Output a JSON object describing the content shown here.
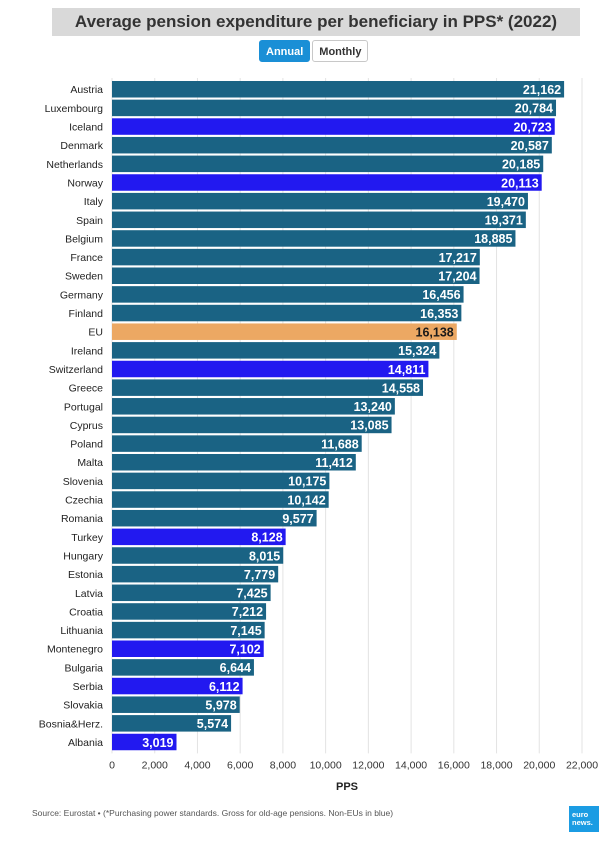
{
  "header": {
    "title": "Average pension expenditure per beneficiary in PPS* (2022)"
  },
  "tabs": [
    {
      "label": "Annual",
      "active": true
    },
    {
      "label": "Monthly",
      "active": false
    }
  ],
  "footer": {
    "source": "Source: Eurostat • (*Purchasing power standards. Gross for old-age pensions. Non-EUs in blue)",
    "logo_line1": "euro",
    "logo_line2": "news."
  },
  "colors": {
    "eu_member": "#1a6384",
    "non_eu": "#2219f0",
    "eu_average": "#eca863",
    "grid": "#e3e3e3"
  },
  "chart_data": {
    "type": "bar",
    "orientation": "horizontal",
    "title": "Average pension expenditure per beneficiary in PPS* (2022)",
    "xlabel": "PPS",
    "ylabel": "",
    "xlim": [
      0,
      22000
    ],
    "xticks": [
      0,
      2000,
      4000,
      6000,
      8000,
      10000,
      12000,
      14000,
      16000,
      18000,
      20000,
      22000
    ],
    "xtick_labels": [
      "0",
      "2,000",
      "4,000",
      "6,000",
      "8,000",
      "10,000",
      "12,000",
      "14,000",
      "16,000",
      "18,000",
      "20,000",
      "22,000"
    ],
    "grid": true,
    "categories": [
      "Austria",
      "Luxembourg",
      "Iceland",
      "Denmark",
      "Netherlands",
      "Norway",
      "Italy",
      "Spain",
      "Belgium",
      "France",
      "Sweden",
      "Germany",
      "Finland",
      "EU",
      "Ireland",
      "Switzerland",
      "Greece",
      "Portugal",
      "Cyprus",
      "Poland",
      "Malta",
      "Slovenia",
      "Czechia",
      "Romania",
      "Turkey",
      "Hungary",
      "Estonia",
      "Latvia",
      "Croatia",
      "Lithuania",
      "Montenegro",
      "Bulgaria",
      "Serbia",
      "Slovakia",
      "Bosnia&Herz.",
      "Albania"
    ],
    "values": [
      21162,
      20784,
      20723,
      20587,
      20185,
      20113,
      19470,
      19371,
      18885,
      17217,
      17204,
      16456,
      16353,
      16138,
      15324,
      14811,
      14558,
      13240,
      13085,
      11688,
      11412,
      10175,
      10142,
      9577,
      8128,
      8015,
      7779,
      7425,
      7212,
      7145,
      7102,
      6644,
      6112,
      5978,
      5574,
      3019
    ],
    "value_labels": [
      "21,162",
      "20,784",
      "20,723",
      "20,587",
      "20,185",
      "20,113",
      "19,470",
      "19,371",
      "18,885",
      "17,217",
      "17,204",
      "16,456",
      "16,353",
      "16,138",
      "15,324",
      "14,811",
      "14,558",
      "13,240",
      "13,085",
      "11,688",
      "11,412",
      "10,175",
      "10,142",
      "9,577",
      "8,128",
      "8,015",
      "7,779",
      "7,425",
      "7,212",
      "7,145",
      "7,102",
      "6,644",
      "6,112",
      "5,978",
      "5,574",
      "3,019"
    ],
    "groups": [
      "eu",
      "eu",
      "non_eu",
      "eu",
      "eu",
      "non_eu",
      "eu",
      "eu",
      "eu",
      "eu",
      "eu",
      "eu",
      "eu",
      "eu_average",
      "eu",
      "non_eu",
      "eu",
      "eu",
      "eu",
      "eu",
      "eu",
      "eu",
      "eu",
      "eu",
      "non_eu",
      "eu",
      "eu",
      "eu",
      "eu",
      "eu",
      "non_eu",
      "eu",
      "non_eu",
      "eu",
      "eu",
      "non_eu"
    ],
    "legend": "none"
  }
}
